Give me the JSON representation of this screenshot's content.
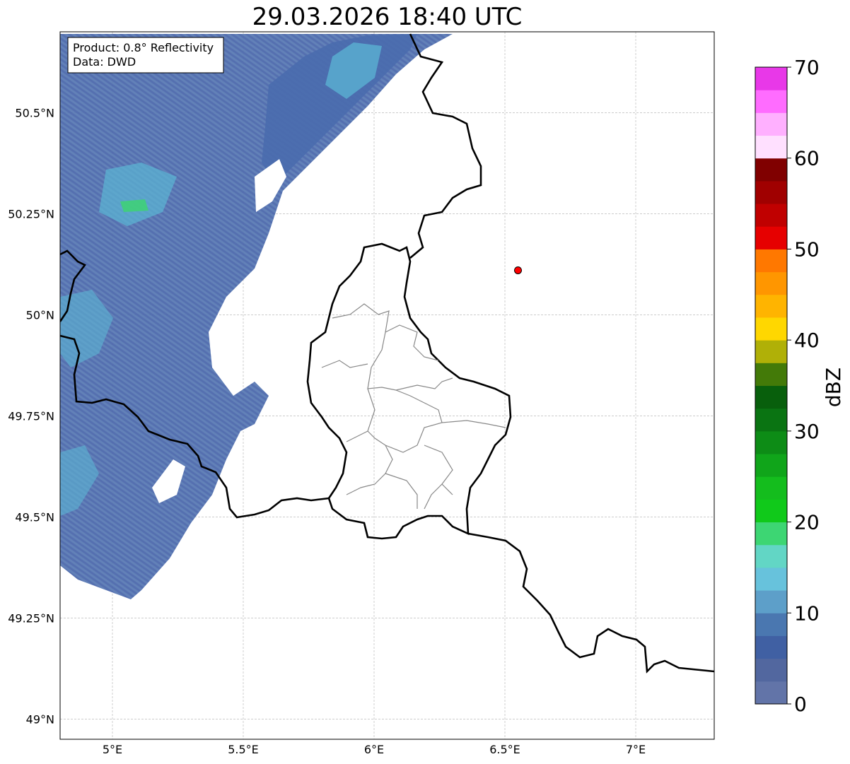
{
  "title": "29.03.2026 18:40 UTC",
  "info_box": {
    "product": "Product: 0.8° Reflectivity",
    "data": "Data: DWD"
  },
  "map": {
    "lon_range": [
      4.8,
      7.3
    ],
    "lat_range": [
      48.95,
      50.7
    ],
    "lon_ticks": [
      {
        "value": 5.0,
        "label": "5°E"
      },
      {
        "value": 5.5,
        "label": "5.5°E"
      },
      {
        "value": 6.0,
        "label": "6°E"
      },
      {
        "value": 6.5,
        "label": "6.5°E"
      },
      {
        "value": 7.0,
        "label": "7°E"
      }
    ],
    "lat_ticks": [
      {
        "value": 49.0,
        "label": "49°N"
      },
      {
        "value": 49.25,
        "label": "49.25°N"
      },
      {
        "value": 49.5,
        "label": "49.5°N"
      },
      {
        "value": 49.75,
        "label": "49.75°N"
      },
      {
        "value": 50.0,
        "label": "50°N"
      },
      {
        "value": 50.25,
        "label": "50.25°N"
      },
      {
        "value": 50.5,
        "label": "50.5°N"
      }
    ],
    "radar_marker": {
      "lon": 6.55,
      "lat": 50.11,
      "color": "#ff0000"
    }
  },
  "colorbar": {
    "label": "dBZ",
    "min": 0,
    "max": 70,
    "tick_labels": [
      {
        "value": 0,
        "label": "0"
      },
      {
        "value": 10,
        "label": "10"
      },
      {
        "value": 20,
        "label": "20"
      },
      {
        "value": 30,
        "label": "30"
      },
      {
        "value": 40,
        "label": "40"
      },
      {
        "value": 50,
        "label": "50"
      },
      {
        "value": 60,
        "label": "60"
      },
      {
        "value": 70,
        "label": "70"
      }
    ],
    "colors": [
      "#6274a8",
      "#52679f",
      "#4060a3",
      "#4a77b0",
      "#5d9fc9",
      "#67c2dc",
      "#62d6c5",
      "#3dd673",
      "#10c91a",
      "#14bd1d",
      "#10a51a",
      "#0d8c16",
      "#0a7412",
      "#085f0c",
      "#437a08",
      "#b0b007",
      "#ffd700",
      "#ffb400",
      "#ff9600",
      "#ff7800",
      "#e60000",
      "#c00000",
      "#a00000",
      "#800000",
      "#ffe0ff",
      "#ffb0ff",
      "#ff6cff",
      "#e838e8"
    ]
  }
}
